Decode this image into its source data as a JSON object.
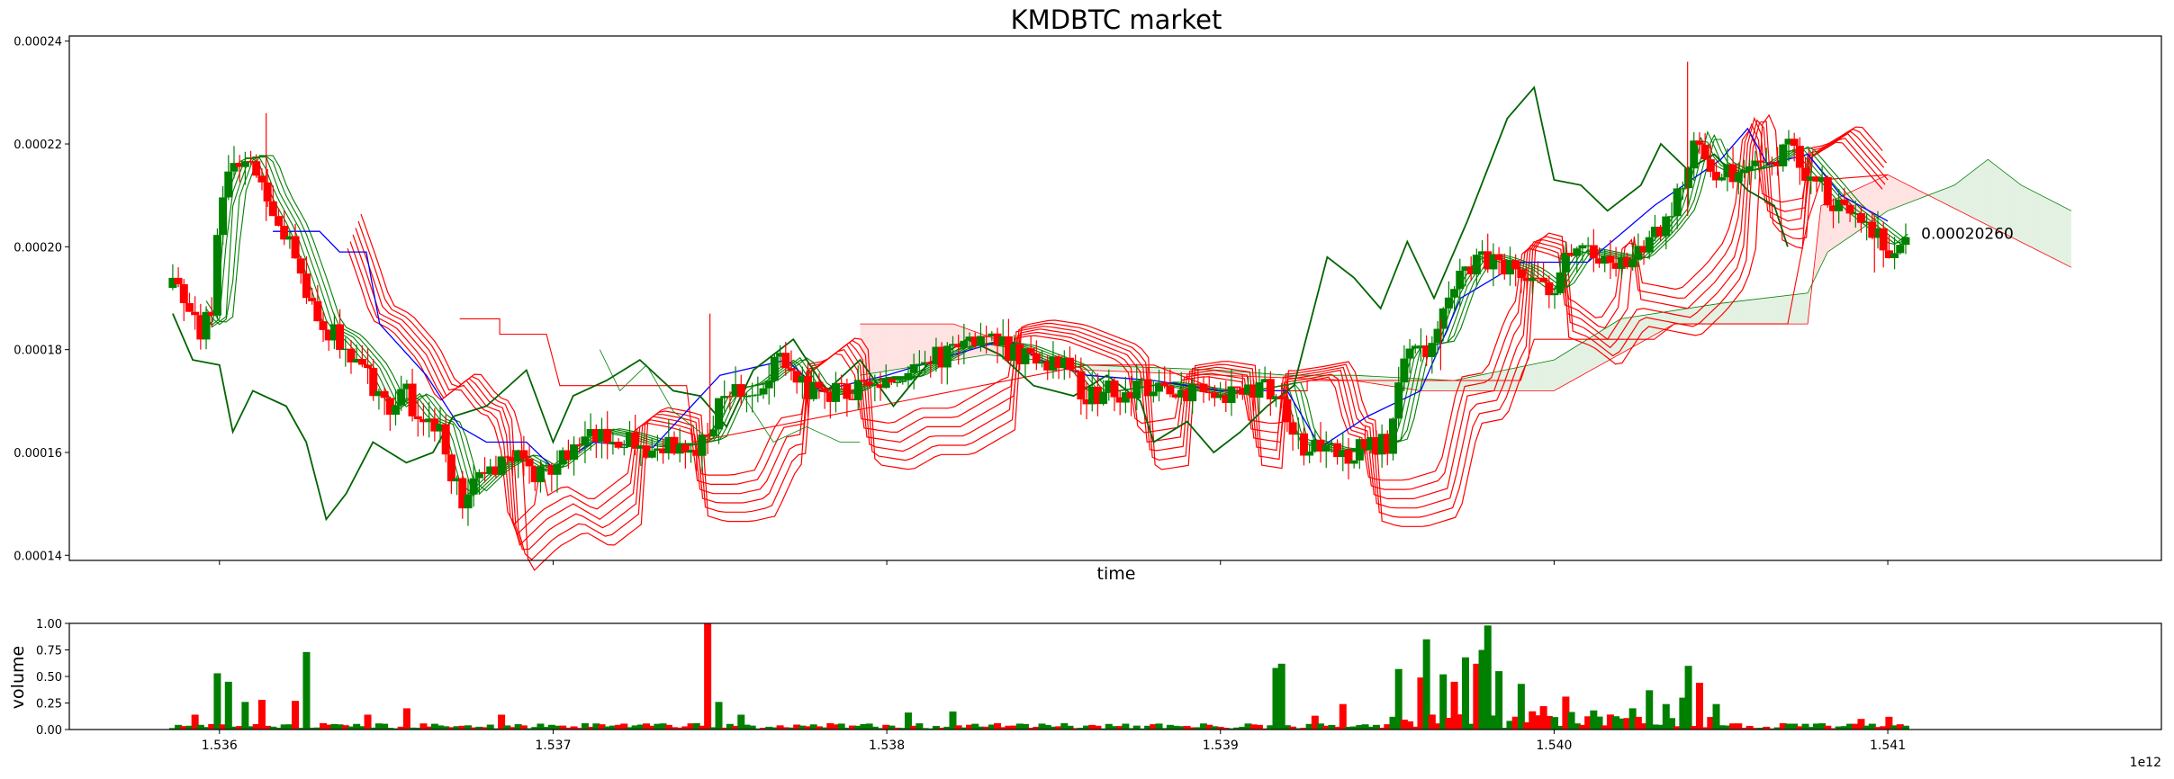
{
  "chart_data": [
    {
      "type": "candlestick",
      "title": "KMDBTC market",
      "xlabel": "time",
      "ylabel": "",
      "ylim": [
        0.000139,
        0.000241
      ],
      "yticks": [
        "0.00014",
        "0.00016",
        "0.00018",
        "0.00020",
        "0.00022",
        "0.00024"
      ],
      "ytick_values": [
        0.00014,
        0.00016,
        0.00018,
        0.0002,
        0.00022,
        0.00024
      ],
      "last_price_label": "0.00020260",
      "last_price": 0.0002026,
      "up_color": "#008000",
      "down_color": "#ff0000",
      "close_path": [
        [
          1535.86,
          0.000192
        ],
        [
          1535.94,
          0.000184
        ],
        [
          1535.98,
          0.000186
        ],
        [
          1536.0,
          0.000208
        ],
        [
          1536.05,
          0.000217
        ],
        [
          1536.1,
          0.000217
        ],
        [
          1536.14,
          0.00021
        ],
        [
          1536.2,
          0.000203
        ],
        [
          1536.26,
          0.000192
        ],
        [
          1536.3,
          0.000184
        ],
        [
          1536.36,
          0.000182
        ],
        [
          1536.44,
          0.000176
        ],
        [
          1536.5,
          0.000168
        ],
        [
          1536.56,
          0.000171
        ],
        [
          1536.62,
          0.000166
        ],
        [
          1536.66,
          0.000165
        ],
        [
          1536.72,
          0.000151
        ],
        [
          1536.8,
          0.000156
        ],
        [
          1536.88,
          0.000159
        ],
        [
          1536.96,
          0.000156
        ],
        [
          1537.02,
          0.000159
        ],
        [
          1537.12,
          0.000164
        ],
        [
          1537.2,
          0.000163
        ],
        [
          1537.3,
          0.000161
        ],
        [
          1537.38,
          0.000161
        ],
        [
          1537.45,
          0.000162
        ],
        [
          1537.52,
          0.000172
        ],
        [
          1537.6,
          0.000173
        ],
        [
          1537.7,
          0.000178
        ],
        [
          1537.76,
          0.000172
        ],
        [
          1537.86,
          0.000171
        ],
        [
          1537.94,
          0.000174
        ],
        [
          1538.04,
          0.000174
        ],
        [
          1538.12,
          0.000177
        ],
        [
          1538.2,
          0.00018
        ],
        [
          1538.28,
          0.000181
        ],
        [
          1538.38,
          0.00018
        ],
        [
          1538.46,
          0.000178
        ],
        [
          1538.54,
          0.000176
        ],
        [
          1538.6,
          0.000171
        ],
        [
          1538.7,
          0.000172
        ],
        [
          1538.8,
          0.000173
        ],
        [
          1538.9,
          0.000172
        ],
        [
          1539.0,
          0.000171
        ],
        [
          1539.1,
          0.000172
        ],
        [
          1539.18,
          0.000173
        ],
        [
          1539.22,
          0.000162
        ],
        [
          1539.32,
          0.00016
        ],
        [
          1539.4,
          0.00016
        ],
        [
          1539.5,
          0.000162
        ],
        [
          1539.56,
          0.00018
        ],
        [
          1539.64,
          0.000181
        ],
        [
          1539.7,
          0.000192
        ],
        [
          1539.76,
          0.000198
        ],
        [
          1539.82,
          0.000197
        ],
        [
          1539.9,
          0.000195
        ],
        [
          1539.98,
          0.000191
        ],
        [
          1540.06,
          0.000199
        ],
        [
          1540.14,
          0.000198
        ],
        [
          1540.22,
          0.000197
        ],
        [
          1540.3,
          0.000202
        ],
        [
          1540.36,
          0.000207
        ],
        [
          1540.42,
          0.000222
        ],
        [
          1540.46,
          0.000216
        ],
        [
          1540.52,
          0.000214
        ],
        [
          1540.6,
          0.000215
        ],
        [
          1540.7,
          0.000219
        ],
        [
          1540.78,
          0.000213
        ],
        [
          1540.86,
          0.000207
        ],
        [
          1540.94,
          0.000203
        ],
        [
          1541.0,
          0.0002
        ],
        [
          1541.06,
          0.000203
        ]
      ],
      "ma_green_offsets": [
        1.5e-06,
        3e-06,
        4.5e-06,
        6e-06,
        7.5e-06
      ],
      "ma_red_offsets": [
        6e-06,
        8e-06,
        1e-05,
        1.2e-05,
        1.4e-05,
        1.6e-05
      ],
      "blue_line": [
        [
          1536.16,
          0.000203
        ],
        [
          1536.3,
          0.000203
        ],
        [
          1536.36,
          0.000199
        ],
        [
          1536.44,
          0.000199
        ],
        [
          1536.48,
          0.000185
        ],
        [
          1536.62,
          0.000175
        ],
        [
          1536.72,
          0.000165
        ],
        [
          1536.8,
          0.000162
        ],
        [
          1536.92,
          0.000162
        ],
        [
          1537.0,
          0.000157
        ],
        [
          1537.12,
          0.000162
        ],
        [
          1537.3,
          0.000161
        ],
        [
          1537.5,
          0.000175
        ],
        [
          1537.7,
          0.000178
        ],
        [
          1537.8,
          0.000172
        ],
        [
          1538.0,
          0.000175
        ],
        [
          1538.2,
          0.000179
        ],
        [
          1538.36,
          0.000182
        ],
        [
          1538.46,
          0.000178
        ],
        [
          1538.6,
          0.000175
        ],
        [
          1538.8,
          0.000174
        ],
        [
          1539.0,
          0.000172
        ],
        [
          1539.2,
          0.000172
        ],
        [
          1539.3,
          0.000161
        ],
        [
          1539.44,
          0.000167
        ],
        [
          1539.6,
          0.000172
        ],
        [
          1539.72,
          0.00019
        ],
        [
          1539.9,
          0.000197
        ],
        [
          1540.1,
          0.000197
        ],
        [
          1540.3,
          0.000208
        ],
        [
          1540.5,
          0.000217
        ],
        [
          1540.58,
          0.000223
        ],
        [
          1540.64,
          0.000216
        ],
        [
          1540.76,
          0.000218
        ],
        [
          1540.86,
          0.00021
        ],
        [
          1541.0,
          0.000205
        ]
      ],
      "green_line": [
        [
          1535.86,
          0.000187
        ],
        [
          1535.92,
          0.000178
        ],
        [
          1536.0,
          0.000177
        ],
        [
          1536.04,
          0.000164
        ],
        [
          1536.1,
          0.000172
        ],
        [
          1536.2,
          0.000169
        ],
        [
          1536.26,
          0.000162
        ],
        [
          1536.32,
          0.000147
        ],
        [
          1536.38,
          0.000152
        ],
        [
          1536.46,
          0.000162
        ],
        [
          1536.56,
          0.000158
        ],
        [
          1536.64,
          0.00016
        ],
        [
          1536.7,
          0.000167
        ],
        [
          1536.8,
          0.000169
        ],
        [
          1536.92,
          0.000176
        ],
        [
          1537.0,
          0.000162
        ],
        [
          1537.06,
          0.000171
        ],
        [
          1537.16,
          0.000174
        ],
        [
          1537.26,
          0.000178
        ],
        [
          1537.36,
          0.000172
        ],
        [
          1537.44,
          0.000171
        ],
        [
          1537.52,
          0.000165
        ],
        [
          1537.6,
          0.000176
        ],
        [
          1537.72,
          0.000182
        ],
        [
          1537.82,
          0.000172
        ],
        [
          1537.92,
          0.000178
        ],
        [
          1538.02,
          0.000169
        ],
        [
          1538.12,
          0.000177
        ],
        [
          1538.24,
          0.000182
        ],
        [
          1538.34,
          0.000179
        ],
        [
          1538.44,
          0.000173
        ],
        [
          1538.56,
          0.000171
        ],
        [
          1538.66,
          0.000175
        ],
        [
          1538.76,
          0.00017
        ],
        [
          1538.8,
          0.000162
        ],
        [
          1538.9,
          0.000166
        ],
        [
          1538.98,
          0.00016
        ],
        [
          1539.06,
          0.000164
        ],
        [
          1539.14,
          0.000169
        ],
        [
          1539.22,
          0.000173
        ],
        [
          1539.32,
          0.000198
        ],
        [
          1539.4,
          0.000194
        ],
        [
          1539.48,
          0.000188
        ],
        [
          1539.56,
          0.000201
        ],
        [
          1539.64,
          0.00019
        ],
        [
          1539.74,
          0.000205
        ],
        [
          1539.86,
          0.000225
        ],
        [
          1539.94,
          0.000231
        ],
        [
          1540.0,
          0.000213
        ],
        [
          1540.08,
          0.000212
        ],
        [
          1540.16,
          0.000207
        ],
        [
          1540.26,
          0.000212
        ],
        [
          1540.32,
          0.00022
        ],
        [
          1540.4,
          0.000215
        ],
        [
          1540.48,
          0.000218
        ],
        [
          1540.58,
          0.000211
        ],
        [
          1540.66,
          0.000208
        ],
        [
          1540.7,
          0.0002
        ]
      ],
      "lagging_line": [
        [
          1537.14,
          0.00018
        ],
        [
          1537.2,
          0.000172
        ],
        [
          1537.28,
          0.000177
        ],
        [
          1537.36,
          0.000168
        ],
        [
          1537.46,
          0.000163
        ],
        [
          1537.56,
          0.000172
        ],
        [
          1537.66,
          0.000162
        ],
        [
          1537.76,
          0.000165
        ],
        [
          1537.86,
          0.000162
        ],
        [
          1537.92,
          0.000162
        ]
      ],
      "cloud": {
        "span_a": [
          [
            1537.92,
            0.000175
          ],
          [
            1538.3,
            0.000179
          ],
          [
            1538.6,
            0.000177
          ],
          [
            1539.0,
            0.000176
          ],
          [
            1539.2,
            0.000175
          ],
          [
            1539.4,
            0.000175
          ],
          [
            1539.7,
            0.000174
          ],
          [
            1540.0,
            0.000178
          ],
          [
            1540.2,
            0.000186
          ],
          [
            1540.5,
            0.000189
          ],
          [
            1540.76,
            0.000191
          ],
          [
            1540.82,
            0.000199
          ],
          [
            1541.0,
            0.000207
          ],
          [
            1541.2,
            0.000212
          ],
          [
            1541.3,
            0.000217
          ],
          [
            1541.4,
            0.000212
          ],
          [
            1541.55,
            0.000207
          ]
        ],
        "span_b": [
          [
            1537.92,
            0.000185
          ],
          [
            1538.2,
            0.000185
          ],
          [
            1538.5,
            0.000178
          ],
          [
            1538.6,
            0.000176
          ],
          [
            1539.0,
            0.000175
          ],
          [
            1539.4,
            0.000174
          ],
          [
            1539.6,
            0.000172
          ],
          [
            1539.88,
            0.000172
          ],
          [
            1540.0,
            0.000172
          ],
          [
            1540.36,
            0.000185
          ],
          [
            1540.76,
            0.000185
          ],
          [
            1540.8,
            0.000208
          ],
          [
            1541.0,
            0.000214
          ],
          [
            1541.55,
            0.000196
          ]
        ]
      },
      "red_stepline": [
        [
          1536.72,
          0.000186
        ],
        [
          1536.84,
          0.000186
        ],
        [
          1536.84,
          0.000183
        ],
        [
          1536.98,
          0.000183
        ],
        [
          1537.02,
          0.000173
        ],
        [
          1537.4,
          0.000173
        ],
        [
          1537.42,
          0.000162
        ],
        [
          1538.6,
          0.000177
        ],
        [
          1538.8,
          0.000177
        ],
        [
          1539.0,
          0.000172
        ],
        [
          1539.26,
          0.000172
        ],
        [
          1539.26,
          0.000174
        ],
        [
          1539.9,
          0.000174
        ],
        [
          1539.94,
          0.000182
        ],
        [
          1540.3,
          0.000182
        ],
        [
          1540.36,
          0.000185
        ],
        [
          1540.7,
          0.000185
        ],
        [
          1540.76,
          0.000205
        ],
        [
          1540.8,
          0.000213
        ],
        [
          1541.0,
          0.000214
        ]
      ]
    },
    {
      "type": "bar",
      "ylabel": "volume",
      "ylim": [
        0,
        1.0
      ],
      "yticks": [
        "0.00",
        "0.25",
        "0.50",
        "0.75",
        "1.00"
      ],
      "ytick_values": [
        0,
        0.25,
        0.5,
        0.75,
        1.0
      ],
      "xlim": [
        1535.55,
        1541.82
      ],
      "xticks": [
        "1.536",
        "1.537",
        "1.538",
        "1.539",
        "1.540",
        "1.541"
      ],
      "xtick_values": [
        1536.0,
        1537.0,
        1538.0,
        1539.0,
        1540.0,
        1541.0
      ],
      "offset_label": "1e12",
      "peaks": [
        {
          "x": 1535.92,
          "v": 0.14,
          "dir": "down"
        },
        {
          "x": 1536.0,
          "v": 0.53,
          "dir": "up"
        },
        {
          "x": 1536.03,
          "v": 0.45,
          "dir": "up"
        },
        {
          "x": 1536.08,
          "v": 0.26,
          "dir": "up"
        },
        {
          "x": 1536.12,
          "v": 0.28,
          "dir": "down"
        },
        {
          "x": 1536.22,
          "v": 0.27,
          "dir": "down"
        },
        {
          "x": 1536.26,
          "v": 0.73,
          "dir": "up"
        },
        {
          "x": 1536.44,
          "v": 0.14,
          "dir": "down"
        },
        {
          "x": 1536.56,
          "v": 0.2,
          "dir": "down"
        },
        {
          "x": 1536.84,
          "v": 0.14,
          "dir": "down"
        },
        {
          "x": 1537.46,
          "v": 1.0,
          "dir": "down"
        },
        {
          "x": 1537.5,
          "v": 0.26,
          "dir": "up"
        },
        {
          "x": 1537.56,
          "v": 0.14,
          "dir": "up"
        },
        {
          "x": 1538.06,
          "v": 0.16,
          "dir": "up"
        },
        {
          "x": 1538.2,
          "v": 0.17,
          "dir": "up"
        },
        {
          "x": 1539.16,
          "v": 0.58,
          "dir": "up"
        },
        {
          "x": 1539.18,
          "v": 0.62,
          "dir": "up"
        },
        {
          "x": 1539.28,
          "v": 0.13,
          "dir": "down"
        },
        {
          "x": 1539.36,
          "v": 0.24,
          "dir": "down"
        },
        {
          "x": 1539.52,
          "v": 0.12,
          "dir": "up"
        },
        {
          "x": 1539.54,
          "v": 0.57,
          "dir": "up"
        },
        {
          "x": 1539.6,
          "v": 0.49,
          "dir": "down"
        },
        {
          "x": 1539.62,
          "v": 0.85,
          "dir": "up"
        },
        {
          "x": 1539.66,
          "v": 0.52,
          "dir": "up"
        },
        {
          "x": 1539.7,
          "v": 0.45,
          "dir": "down"
        },
        {
          "x": 1539.74,
          "v": 0.68,
          "dir": "up"
        },
        {
          "x": 1539.76,
          "v": 0.62,
          "dir": "down"
        },
        {
          "x": 1539.78,
          "v": 0.75,
          "dir": "up"
        },
        {
          "x": 1539.8,
          "v": 0.98,
          "dir": "up"
        },
        {
          "x": 1539.84,
          "v": 0.55,
          "dir": "up"
        },
        {
          "x": 1539.9,
          "v": 0.43,
          "dir": "up"
        },
        {
          "x": 1539.96,
          "v": 0.22,
          "dir": "down"
        },
        {
          "x": 1540.04,
          "v": 0.31,
          "dir": "down"
        },
        {
          "x": 1540.12,
          "v": 0.18,
          "dir": "up"
        },
        {
          "x": 1540.24,
          "v": 0.2,
          "dir": "up"
        },
        {
          "x": 1540.28,
          "v": 0.37,
          "dir": "up"
        },
        {
          "x": 1540.34,
          "v": 0.24,
          "dir": "up"
        },
        {
          "x": 1540.38,
          "v": 0.3,
          "dir": "up"
        },
        {
          "x": 1540.4,
          "v": 0.6,
          "dir": "up"
        },
        {
          "x": 1540.44,
          "v": 0.44,
          "dir": "down"
        },
        {
          "x": 1540.48,
          "v": 0.24,
          "dir": "up"
        },
        {
          "x": 1540.92,
          "v": 0.1,
          "dir": "down"
        },
        {
          "x": 1541.0,
          "v": 0.12,
          "dir": "down"
        }
      ]
    }
  ]
}
